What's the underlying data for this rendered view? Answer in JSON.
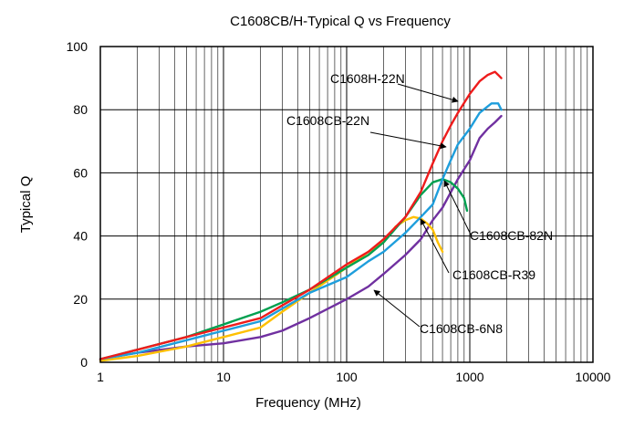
{
  "chart_data": {
    "type": "line",
    "title": "C1608CB/H-Typical Q vs Frequency",
    "xlabel": "Frequency (MHz)",
    "ylabel": "Typical Q",
    "xscale": "log",
    "xlim": [
      1,
      10000
    ],
    "ylim": [
      0,
      100
    ],
    "xticks": [
      1,
      10,
      100,
      1000,
      10000
    ],
    "xtick_labels": [
      "1",
      "10",
      "100",
      "1000",
      "10000"
    ],
    "yticks": [
      0,
      20,
      40,
      60,
      80,
      100
    ],
    "ytick_labels": [
      "0",
      "20",
      "40",
      "60",
      "80",
      "100"
    ],
    "grid": true,
    "series": [
      {
        "name": "C1608CB-6N8",
        "color": "#7030a0",
        "points": [
          [
            1,
            1
          ],
          [
            2,
            3
          ],
          [
            5,
            5
          ],
          [
            10,
            6
          ],
          [
            20,
            8
          ],
          [
            30,
            10
          ],
          [
            50,
            14
          ],
          [
            100,
            20
          ],
          [
            150,
            24
          ],
          [
            200,
            28
          ],
          [
            300,
            34
          ],
          [
            400,
            39
          ],
          [
            500,
            45
          ],
          [
            600,
            49
          ],
          [
            800,
            58
          ],
          [
            1000,
            64
          ],
          [
            1200,
            71
          ],
          [
            1400,
            74
          ],
          [
            1600,
            76
          ],
          [
            1800,
            78
          ]
        ]
      },
      {
        "name": "C1608CB-R39",
        "color": "#ffc000",
        "points": [
          [
            1,
            0.5
          ],
          [
            2,
            2
          ],
          [
            5,
            5
          ],
          [
            10,
            8
          ],
          [
            20,
            11
          ],
          [
            30,
            16
          ],
          [
            50,
            22
          ],
          [
            100,
            30
          ],
          [
            150,
            35
          ],
          [
            200,
            38
          ],
          [
            250,
            43
          ],
          [
            300,
            45
          ],
          [
            350,
            46
          ],
          [
            400,
            45.5
          ],
          [
            450,
            44
          ],
          [
            500,
            42
          ],
          [
            550,
            38
          ],
          [
            600,
            35
          ]
        ]
      },
      {
        "name": "C1608CB-82N",
        "color": "#00a050",
        "points": [
          [
            1,
            1
          ],
          [
            2,
            4
          ],
          [
            5,
            8
          ],
          [
            10,
            12
          ],
          [
            20,
            16
          ],
          [
            30,
            19
          ],
          [
            50,
            23
          ],
          [
            100,
            30
          ],
          [
            150,
            34
          ],
          [
            200,
            38
          ],
          [
            300,
            46
          ],
          [
            400,
            53
          ],
          [
            500,
            57
          ],
          [
            600,
            58
          ],
          [
            700,
            57
          ],
          [
            800,
            55
          ],
          [
            900,
            52
          ],
          [
            950,
            48
          ]
        ]
      },
      {
        "name": "C1608CB-22N",
        "color": "#1e9edc",
        "points": [
          [
            1,
            1
          ],
          [
            2,
            3
          ],
          [
            5,
            7
          ],
          [
            10,
            10
          ],
          [
            20,
            13
          ],
          [
            30,
            17
          ],
          [
            50,
            22
          ],
          [
            100,
            27
          ],
          [
            150,
            32
          ],
          [
            200,
            35
          ],
          [
            300,
            41
          ],
          [
            400,
            46
          ],
          [
            500,
            50
          ],
          [
            600,
            58
          ],
          [
            700,
            64
          ],
          [
            800,
            69
          ],
          [
            1000,
            74
          ],
          [
            1200,
            79
          ],
          [
            1500,
            82
          ],
          [
            1700,
            82
          ],
          [
            1800,
            80
          ]
        ]
      },
      {
        "name": "C1608H-22N",
        "color": "#ee1c1c",
        "points": [
          [
            1,
            1
          ],
          [
            2,
            4
          ],
          [
            5,
            8
          ],
          [
            10,
            11
          ],
          [
            20,
            14
          ],
          [
            30,
            18
          ],
          [
            50,
            23
          ],
          [
            100,
            31
          ],
          [
            150,
            35
          ],
          [
            200,
            39
          ],
          [
            300,
            46
          ],
          [
            400,
            54
          ],
          [
            500,
            63
          ],
          [
            600,
            70
          ],
          [
            700,
            75
          ],
          [
            800,
            79
          ],
          [
            1000,
            85
          ],
          [
            1200,
            89
          ],
          [
            1400,
            91
          ],
          [
            1600,
            92
          ],
          [
            1700,
            91
          ],
          [
            1800,
            90
          ]
        ]
      }
    ],
    "annotations": [
      {
        "text": "C1608H-22N",
        "arrow_to": [
          1000,
          85
        ]
      },
      {
        "text": "C1608CB-22N",
        "arrow_to": [
          800,
          69
        ]
      },
      {
        "text": "C1608CB-82N",
        "arrow_to": [
          600,
          58
        ]
      },
      {
        "text": "C1608CB-R39",
        "arrow_to": [
          400,
          45.5
        ]
      },
      {
        "text": "C1608CB-6N8",
        "arrow_to": [
          200,
          28
        ]
      }
    ]
  }
}
